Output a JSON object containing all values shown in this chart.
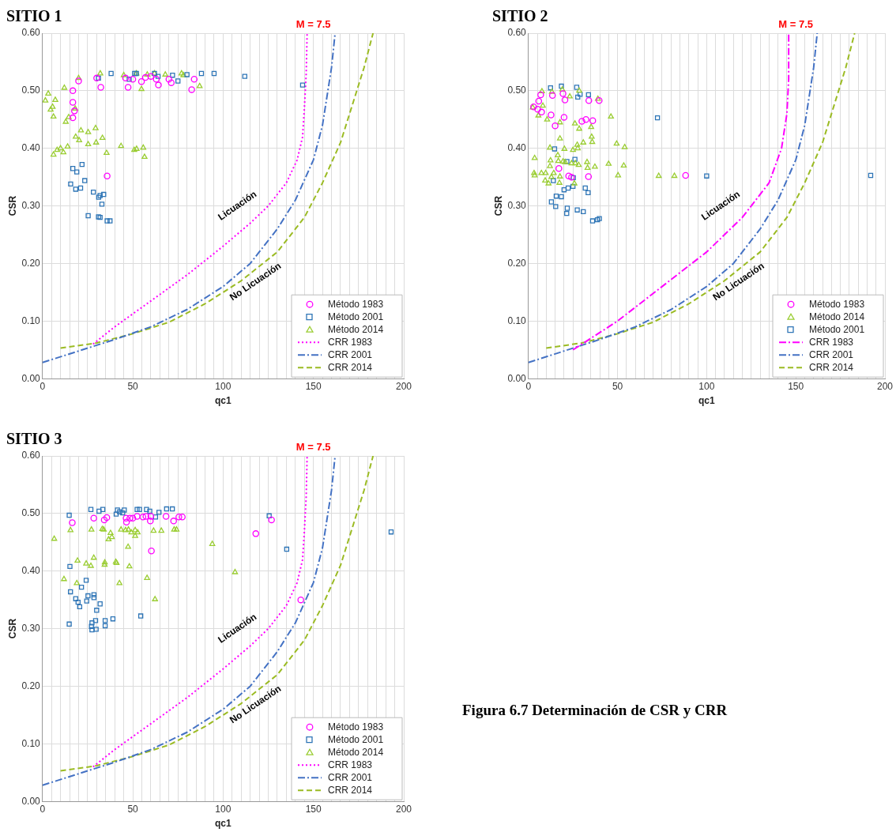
{
  "chart_data": [
    {
      "type": "scatter",
      "title": "SITIO 1",
      "xlabel": "qc1",
      "ylabel": "CSR",
      "xlim": [
        0,
        200
      ],
      "ylim": [
        0,
        0.6
      ],
      "xticks": [
        0,
        {
          "value": 5,
          "label": null
        },
        {
          "value": 10,
          "label": null
        },
        {
          "value": 15,
          "label": null
        },
        {
          "value": 20,
          "label": null
        },
        {
          "value": 25,
          "label": null
        },
        {
          "value": 30,
          "label": null
        },
        {
          "value": 35,
          "label": null
        },
        {
          "value": 40,
          "label": null
        },
        {
          "value": 45,
          "label": null
        },
        50,
        {
          "value": 55,
          "label": null
        },
        {
          "value": 60,
          "label": null
        },
        {
          "value": 65,
          "label": null
        },
        {
          "value": 70,
          "label": null
        },
        {
          "value": 75,
          "label": null
        },
        {
          "value": 80,
          "label": null
        },
        {
          "value": 85,
          "label": null
        },
        {
          "value": 90,
          "label": null
        },
        {
          "value": 95,
          "label": null
        },
        100,
        {
          "value": 105,
          "label": null
        },
        {
          "value": 110,
          "label": null
        },
        {
          "value": 115,
          "label": null
        },
        {
          "value": 120,
          "label": null
        },
        {
          "value": 125,
          "label": null
        },
        {
          "value": 130,
          "label": null
        },
        {
          "value": 135,
          "label": null
        },
        {
          "value": 140,
          "label": null
        },
        {
          "value": 145,
          "label": null
        },
        150,
        {
          "value": 155,
          "label": null
        },
        {
          "value": 160,
          "label": null
        },
        {
          "value": 165,
          "label": null
        },
        {
          "value": 170,
          "label": null
        },
        {
          "value": 175,
          "label": null
        },
        {
          "value": 180,
          "label": null
        },
        {
          "value": 185,
          "label": null
        },
        {
          "value": 190,
          "label": null
        },
        {
          "value": 195,
          "label": null
        },
        200
      ],
      "yticks": [
        {
          "value": 0,
          "label": "0.00"
        },
        {
          "value": 0.1,
          "label": "0.10"
        },
        {
          "value": 0.2,
          "label": "0.20"
        },
        {
          "value": 0.3,
          "label": "0.30"
        },
        {
          "value": 0.4,
          "label": "0.40"
        },
        {
          "value": 0.5,
          "label": "0.50"
        },
        {
          "value": 0.6,
          "label": "0.60"
        }
      ],
      "grid": true,
      "legend": "bottom right",
      "annotations": [
        "M = 7.5",
        "Licuación",
        "No Licuación"
      ],
      "series": [
        {
          "name": "Método 1983",
          "type": "scatter",
          "marker": "circle",
          "color": "#ff00ff",
          "x": [
            16.8,
            16.8,
            17.7,
            16.8,
            35.8,
            20,
            32.3,
            82.6,
            64.2,
            54.8,
            47.4,
            71.3,
            30,
            46,
            50,
            57,
            60,
            63,
            70,
            84
          ],
          "values": [
            0.5,
            0.48,
            0.465,
            0.453,
            0.352,
            0.517,
            0.506,
            0.502,
            0.51,
            0.516,
            0.506,
            0.514,
            0.522,
            0.522,
            0.52,
            0.523,
            0.525,
            0.52,
            0.52,
            0.52
          ]
        },
        {
          "name": "Método 2001",
          "type": "scatter",
          "marker": "square",
          "color": "#2e75b6",
          "x": [
            21.9,
            16.8,
            19,
            23.4,
            15.6,
            18.4,
            21.1,
            28.2,
            31.1,
            31.9,
            33.9,
            32.9,
            25.3,
            31,
            31.9,
            35.8,
            37.4,
            31,
            38,
            48,
            51,
            52,
            62,
            64,
            72,
            75,
            80,
            88,
            95,
            112,
            144
          ],
          "values": [
            0.372,
            0.365,
            0.359,
            0.344,
            0.338,
            0.329,
            0.331,
            0.324,
            0.315,
            0.318,
            0.32,
            0.303,
            0.283,
            0.281,
            0.28,
            0.274,
            0.274,
            0.522,
            0.53,
            0.52,
            0.53,
            0.53,
            0.53,
            0.525,
            0.527,
            0.517,
            0.528,
            0.53,
            0.53,
            0.525,
            0.51
          ]
        },
        {
          "name": "Método 2014",
          "type": "scatter",
          "marker": "triangle",
          "color": "#9acd32",
          "x": [
            12.1,
            3.2,
            1.6,
            7.1,
            5.6,
            4.5,
            6.1,
            12.9,
            14.5,
            18.1,
            21.3,
            29.4,
            25.3,
            18.4,
            20.3,
            33.2,
            25.3,
            29.7,
            43.5,
            13.9,
            10,
            8.1,
            6.1,
            11.6,
            35.5,
            50.8,
            52.1,
            55.8,
            56.5,
            54.8,
            87,
            32,
            45,
            52,
            58,
            62,
            68,
            77,
            78,
            20
          ],
          "values": [
            0.505,
            0.495,
            0.483,
            0.484,
            0.472,
            0.467,
            0.455,
            0.446,
            0.454,
            0.469,
            0.431,
            0.435,
            0.428,
            0.42,
            0.414,
            0.418,
            0.407,
            0.41,
            0.404,
            0.403,
            0.4,
            0.397,
            0.389,
            0.393,
            0.392,
            0.397,
            0.399,
            0.401,
            0.385,
            0.503,
            0.508,
            0.53,
            0.527,
            0.53,
            0.528,
            0.53,
            0.528,
            0.53,
            0.527,
            0.522
          ]
        },
        {
          "name": "CRR 1983",
          "type": "line",
          "marker": "none",
          "line_style": "dotted",
          "color": "#ff00ff",
          "x": [
            28,
            40,
            60,
            80,
            100,
            115,
            125,
            135,
            141,
            144,
            145,
            146,
            146.5
          ],
          "values": [
            0.06,
            0.09,
            0.135,
            0.18,
            0.23,
            0.27,
            0.3,
            0.34,
            0.38,
            0.42,
            0.47,
            0.53,
            0.6
          ]
        },
        {
          "name": "CRR 2001",
          "type": "line",
          "marker": "none",
          "line_style": "dashdot",
          "color": "#4472c4",
          "x": [
            0,
            20,
            40,
            60,
            80,
            100,
            115,
            130,
            140,
            150,
            155,
            160,
            162
          ],
          "values": [
            0.028,
            0.048,
            0.068,
            0.09,
            0.12,
            0.16,
            0.2,
            0.26,
            0.31,
            0.38,
            0.44,
            0.54,
            0.6
          ]
        },
        {
          "name": "CRR 2014",
          "type": "line",
          "marker": "none",
          "line_style": "dashed",
          "color": "#9bbb23",
          "x": [
            10,
            30,
            50,
            70,
            90,
            110,
            130,
            145,
            155,
            165,
            172,
            178,
            183
          ],
          "values": [
            0.053,
            0.062,
            0.078,
            0.098,
            0.13,
            0.17,
            0.22,
            0.28,
            0.34,
            0.41,
            0.48,
            0.54,
            0.6
          ]
        }
      ]
    },
    {
      "type": "scatter",
      "title": "SITIO 2",
      "xlabel": "qc1",
      "ylabel": "CSR",
      "xlim": [
        0,
        200
      ],
      "ylim": [
        0,
        0.6
      ],
      "xticks": [
        0,
        {
          "value": 5,
          "label": null
        },
        {
          "value": 10,
          "label": null
        },
        {
          "value": 15,
          "label": null
        },
        {
          "value": 20,
          "label": null
        },
        {
          "value": 25,
          "label": null
        },
        {
          "value": 30,
          "label": null
        },
        {
          "value": 35,
          "label": null
        },
        {
          "value": 40,
          "label": null
        },
        {
          "value": 45,
          "label": null
        },
        50,
        {
          "value": 55,
          "label": null
        },
        {
          "value": 60,
          "label": null
        },
        {
          "value": 65,
          "label": null
        },
        {
          "value": 70,
          "label": null
        },
        {
          "value": 75,
          "label": null
        },
        {
          "value": 80,
          "label": null
        },
        {
          "value": 85,
          "label": null
        },
        {
          "value": 90,
          "label": null
        },
        {
          "value": 95,
          "label": null
        },
        100,
        {
          "value": 105,
          "label": null
        },
        {
          "value": 110,
          "label": null
        },
        {
          "value": 115,
          "label": null
        },
        {
          "value": 120,
          "label": null
        },
        {
          "value": 125,
          "label": null
        },
        {
          "value": 130,
          "label": null
        },
        {
          "value": 135,
          "label": null
        },
        {
          "value": 140,
          "label": null
        },
        {
          "value": 145,
          "label": null
        },
        150,
        {
          "value": 155,
          "label": null
        },
        {
          "value": 160,
          "label": null
        },
        {
          "value": 165,
          "label": null
        },
        {
          "value": 170,
          "label": null
        },
        {
          "value": 175,
          "label": null
        },
        {
          "value": 180,
          "label": null
        },
        {
          "value": 185,
          "label": null
        },
        {
          "value": 190,
          "label": null
        },
        {
          "value": 195,
          "label": null
        },
        200
      ],
      "yticks": [
        {
          "value": 0,
          "label": "0.00"
        },
        {
          "value": 0.1,
          "label": "0.10"
        },
        {
          "value": 0.2,
          "label": "0.20"
        },
        {
          "value": 0.3,
          "label": "0.30"
        },
        {
          "value": 0.4,
          "label": "0.40"
        },
        {
          "value": 0.5,
          "label": "0.50"
        },
        {
          "value": 0.6,
          "label": "0.60"
        }
      ],
      "grid": true,
      "legend": "bottom right",
      "annotations": [
        "M = 7.5",
        "Licuación",
        "No Licuación"
      ],
      "series": [
        {
          "name": "Método 1983",
          "type": "scatter",
          "marker": "circle",
          "color": "#ff00ff",
          "x": [
            6.9,
            13.5,
            19.4,
            5.8,
            20.5,
            33.9,
            39.7,
            2.9,
            5.2,
            7.4,
            12.7,
            20,
            15,
            30,
            32.3,
            36.1,
            17.1,
            22.6,
            24.2,
            33.7,
            88.2
          ],
          "values": [
            0.493,
            0.492,
            0.495,
            0.482,
            0.484,
            0.483,
            0.483,
            0.472,
            0.468,
            0.463,
            0.458,
            0.454,
            0.439,
            0.447,
            0.45,
            0.448,
            0.365,
            0.352,
            0.35,
            0.351,
            0.353
          ]
        },
        {
          "name": "Método 2014",
          "type": "scatter",
          "marker": "triangle",
          "color": "#9acd32",
          "x": [
            7.6,
            13.2,
            19,
            28.5,
            23.2,
            39,
            8.1,
            2.4,
            5.6,
            10.5,
            17.7,
            26.1,
            28.5,
            35.2,
            46.3,
            17.7,
            35.5,
            35.8,
            30.8,
            49.5,
            54,
            27.4,
            27.7,
            12.1,
            20.2,
            25,
            16.5,
            3.5,
            12.4,
            16.8,
            19.4,
            20.6,
            24.2,
            26.3,
            28.2,
            32.9,
            33.2,
            37.3,
            45,
            53.5,
            12.1,
            3.2,
            3.5,
            7.3,
            9.7,
            14.2,
            17.7,
            12.9,
            9.4,
            11.3,
            17.4,
            25.8,
            50.3,
            73.1,
            81.9
          ],
          "values": [
            0.499,
            0.498,
            0.502,
            0.5,
            0.49,
            0.486,
            0.474,
            0.471,
            0.457,
            0.45,
            0.445,
            0.443,
            0.434,
            0.437,
            0.455,
            0.417,
            0.42,
            0.411,
            0.41,
            0.408,
            0.402,
            0.406,
            0.4,
            0.401,
            0.399,
            0.397,
            0.388,
            0.383,
            0.379,
            0.378,
            0.377,
            0.376,
            0.374,
            0.374,
            0.371,
            0.376,
            0.366,
            0.368,
            0.373,
            0.37,
            0.369,
            0.357,
            0.353,
            0.357,
            0.357,
            0.357,
            0.351,
            0.35,
            0.344,
            0.339,
            0.34,
            0.339,
            0.353,
            0.352,
            0.352
          ]
        },
        {
          "name": "Método 2001",
          "type": "scatter",
          "marker": "square",
          "color": "#2e75b6",
          "x": [
            12.4,
            18.5,
            27.1,
            27.7,
            29,
            33.7,
            72.4,
            14.7,
            26.1,
            21.6,
            14,
            25.2,
            25,
            22.3,
            20,
            31.9,
            33.5,
            15.6,
            18.5,
            12.9,
            15.3,
            21.8,
            21.5,
            27.4,
            30.8,
            36,
            38.7,
            39.8,
            100,
            192
          ],
          "values": [
            0.505,
            0.508,
            0.506,
            0.489,
            0.494,
            0.493,
            0.453,
            0.399,
            0.381,
            0.377,
            0.344,
            0.349,
            0.334,
            0.331,
            0.328,
            0.331,
            0.323,
            0.317,
            0.316,
            0.307,
            0.299,
            0.296,
            0.287,
            0.293,
            0.29,
            0.274,
            0.276,
            0.278,
            0.352,
            0.353
          ]
        },
        {
          "name": "CRR 1983",
          "type": "line",
          "marker": "none",
          "line_style": "dashdot",
          "color": "#ff00ff",
          "x": [
            25,
            50,
            75,
            100,
            120,
            135,
            142,
            145,
            146,
            146
          ],
          "values": [
            0.05,
            0.1,
            0.16,
            0.22,
            0.28,
            0.34,
            0.4,
            0.46,
            0.52,
            0.6
          ]
        },
        {
          "name": "CRR 2001",
          "type": "line",
          "marker": "none",
          "line_style": "dashdot",
          "color": "#4472c4",
          "x": [
            0,
            20,
            40,
            60,
            80,
            100,
            115,
            130,
            140,
            150,
            155,
            160,
            162
          ],
          "values": [
            0.028,
            0.048,
            0.068,
            0.09,
            0.12,
            0.16,
            0.2,
            0.26,
            0.31,
            0.38,
            0.44,
            0.54,
            0.6
          ]
        },
        {
          "name": "CRR 2014",
          "type": "line",
          "marker": "none",
          "line_style": "dashed",
          "color": "#9bbb23",
          "x": [
            10,
            30,
            50,
            70,
            90,
            110,
            130,
            145,
            155,
            165,
            172,
            178,
            183
          ],
          "values": [
            0.053,
            0.062,
            0.078,
            0.098,
            0.13,
            0.17,
            0.22,
            0.28,
            0.34,
            0.41,
            0.48,
            0.54,
            0.6
          ]
        }
      ]
    },
    {
      "type": "scatter",
      "title": "SITIO 3",
      "xlabel": "qc1",
      "ylabel": "CSR",
      "xlim": [
        0,
        200
      ],
      "ylim": [
        0,
        0.6
      ],
      "xticks": [
        0,
        {
          "value": 5,
          "label": null
        },
        {
          "value": 10,
          "label": null
        },
        {
          "value": 15,
          "label": null
        },
        {
          "value": 20,
          "label": null
        },
        {
          "value": 25,
          "label": null
        },
        {
          "value": 30,
          "label": null
        },
        {
          "value": 35,
          "label": null
        },
        {
          "value": 40,
          "label": null
        },
        {
          "value": 45,
          "label": null
        },
        50,
        {
          "value": 55,
          "label": null
        },
        {
          "value": 60,
          "label": null
        },
        {
          "value": 65,
          "label": null
        },
        {
          "value": 70,
          "label": null
        },
        {
          "value": 75,
          "label": null
        },
        {
          "value": 80,
          "label": null
        },
        {
          "value": 85,
          "label": null
        },
        {
          "value": 90,
          "label": null
        },
        {
          "value": 95,
          "label": null
        },
        100,
        {
          "value": 105,
          "label": null
        },
        {
          "value": 110,
          "label": null
        },
        {
          "value": 115,
          "label": null
        },
        {
          "value": 120,
          "label": null
        },
        {
          "value": 125,
          "label": null
        },
        {
          "value": 130,
          "label": null
        },
        {
          "value": 135,
          "label": null
        },
        {
          "value": 140,
          "label": null
        },
        {
          "value": 145,
          "label": null
        },
        150,
        {
          "value": 155,
          "label": null
        },
        {
          "value": 160,
          "label": null
        },
        {
          "value": 165,
          "label": null
        },
        {
          "value": 170,
          "label": null
        },
        {
          "value": 175,
          "label": null
        },
        {
          "value": 180,
          "label": null
        },
        {
          "value": 185,
          "label": null
        },
        {
          "value": 190,
          "label": null
        },
        {
          "value": 195,
          "label": null
        },
        200
      ],
      "yticks": [
        {
          "value": 0,
          "label": "0.00"
        },
        {
          "value": 0.1,
          "label": "0.10"
        },
        {
          "value": 0.2,
          "label": "0.20"
        },
        {
          "value": 0.3,
          "label": "0.30"
        },
        {
          "value": 0.4,
          "label": "0.40"
        },
        {
          "value": 0.5,
          "label": "0.50"
        },
        {
          "value": 0.6,
          "label": "0.60"
        }
      ],
      "grid": true,
      "legend": "bottom right",
      "annotations": [
        "M = 7.5",
        "Licuación",
        "No Licuación"
      ],
      "series": [
        {
          "name": "Método 1983",
          "type": "scatter",
          "marker": "circle",
          "color": "#ff00ff",
          "x": [
            16.5,
            28.4,
            34.2,
            35.6,
            46.3,
            46.5,
            48.4,
            50,
            52.4,
            55.6,
            57.3,
            60,
            59.7,
            68.4,
            72.6,
            75.5,
            77.4,
            60.3,
            126.8,
            118.1,
            143
          ],
          "values": [
            0.484,
            0.492,
            0.489,
            0.493,
            0.492,
            0.485,
            0.492,
            0.492,
            0.495,
            0.494,
            0.495,
            0.495,
            0.487,
            0.495,
            0.487,
            0.494,
            0.494,
            0.435,
            0.489,
            0.465,
            0.35
          ]
        },
        {
          "name": "Método 2001",
          "type": "scatter",
          "marker": "square",
          "color": "#2e75b6",
          "x": [
            14.8,
            26.8,
            31.3,
            33.4,
            41.5,
            42.7,
            45.3,
            40.8,
            44.4,
            52.4,
            53.7,
            57.6,
            59.4,
            62.6,
            64.5,
            68.7,
            71.9,
            15.2,
            24.2,
            21.6,
            15.5,
            18.4,
            19.7,
            20.6,
            25.2,
            28.5,
            28.5,
            24.5,
            31.9,
            30,
            39,
            34.7,
            34.7,
            29.4,
            27.4,
            27.1,
            27.4,
            29.7,
            14.8,
            54.4,
            125.5,
            135.2,
            193
          ],
          "values": [
            0.497,
            0.507,
            0.504,
            0.507,
            0.506,
            0.503,
            0.506,
            0.499,
            0.501,
            0.507,
            0.507,
            0.507,
            0.504,
            0.494,
            0.502,
            0.508,
            0.508,
            0.408,
            0.384,
            0.372,
            0.364,
            0.352,
            0.346,
            0.338,
            0.357,
            0.359,
            0.354,
            0.348,
            0.343,
            0.332,
            0.317,
            0.314,
            0.305,
            0.314,
            0.31,
            0.304,
            0.298,
            0.299,
            0.308,
            0.322,
            0.496,
            0.438,
            0.468
          ]
        },
        {
          "name": "Método 2014",
          "type": "scatter",
          "marker": "triangle",
          "color": "#9acd32",
          "x": [
            6.5,
            15.5,
            27.1,
            33.1,
            33.9,
            37.7,
            38.4,
            36.6,
            43.5,
            46,
            47.6,
            49.2,
            51.3,
            52.7,
            51.3,
            61.5,
            65.8,
            72.9,
            74.2,
            47.4,
            94,
            19.4,
            28.4,
            24.2,
            26.8,
            34.5,
            34.4,
            40.6,
            41,
            48.1,
            106.6,
            11.9,
            19,
            42.6,
            57.9,
            62.3
          ],
          "values": [
            0.456,
            0.471,
            0.472,
            0.473,
            0.472,
            0.466,
            0.459,
            0.455,
            0.472,
            0.471,
            0.472,
            0.467,
            0.471,
            0.467,
            0.461,
            0.47,
            0.47,
            0.472,
            0.472,
            0.442,
            0.447,
            0.418,
            0.423,
            0.413,
            0.409,
            0.415,
            0.411,
            0.416,
            0.414,
            0.408,
            0.398,
            0.386,
            0.379,
            0.379,
            0.388,
            0.351
          ]
        },
        {
          "name": "CRR 1983",
          "type": "line",
          "marker": "none",
          "line_style": "dotted",
          "color": "#ff00ff",
          "x": [
            28,
            40,
            60,
            80,
            100,
            115,
            125,
            135,
            141,
            144,
            145,
            146,
            146.5
          ],
          "values": [
            0.06,
            0.09,
            0.135,
            0.18,
            0.23,
            0.27,
            0.3,
            0.34,
            0.38,
            0.42,
            0.47,
            0.53,
            0.6
          ]
        },
        {
          "name": "CRR 2001",
          "type": "line",
          "marker": "none",
          "line_style": "dashdot",
          "color": "#4472c4",
          "x": [
            0,
            20,
            40,
            60,
            80,
            100,
            115,
            130,
            140,
            150,
            155,
            160,
            162
          ],
          "values": [
            0.028,
            0.048,
            0.068,
            0.09,
            0.12,
            0.16,
            0.2,
            0.26,
            0.31,
            0.38,
            0.44,
            0.54,
            0.6
          ]
        },
        {
          "name": "CRR 2014",
          "type": "line",
          "marker": "none",
          "line_style": "dashed",
          "color": "#9bbb23",
          "x": [
            10,
            30,
            50,
            70,
            90,
            110,
            130,
            145,
            155,
            165,
            172,
            178,
            183
          ],
          "values": [
            0.053,
            0.062,
            0.078,
            0.098,
            0.13,
            0.17,
            0.22,
            0.28,
            0.34,
            0.41,
            0.48,
            0.54,
            0.6
          ]
        }
      ]
    },
    {
      "type": "other",
      "title": "Figura 6.7 Determinación de CSR y CRR"
    }
  ]
}
